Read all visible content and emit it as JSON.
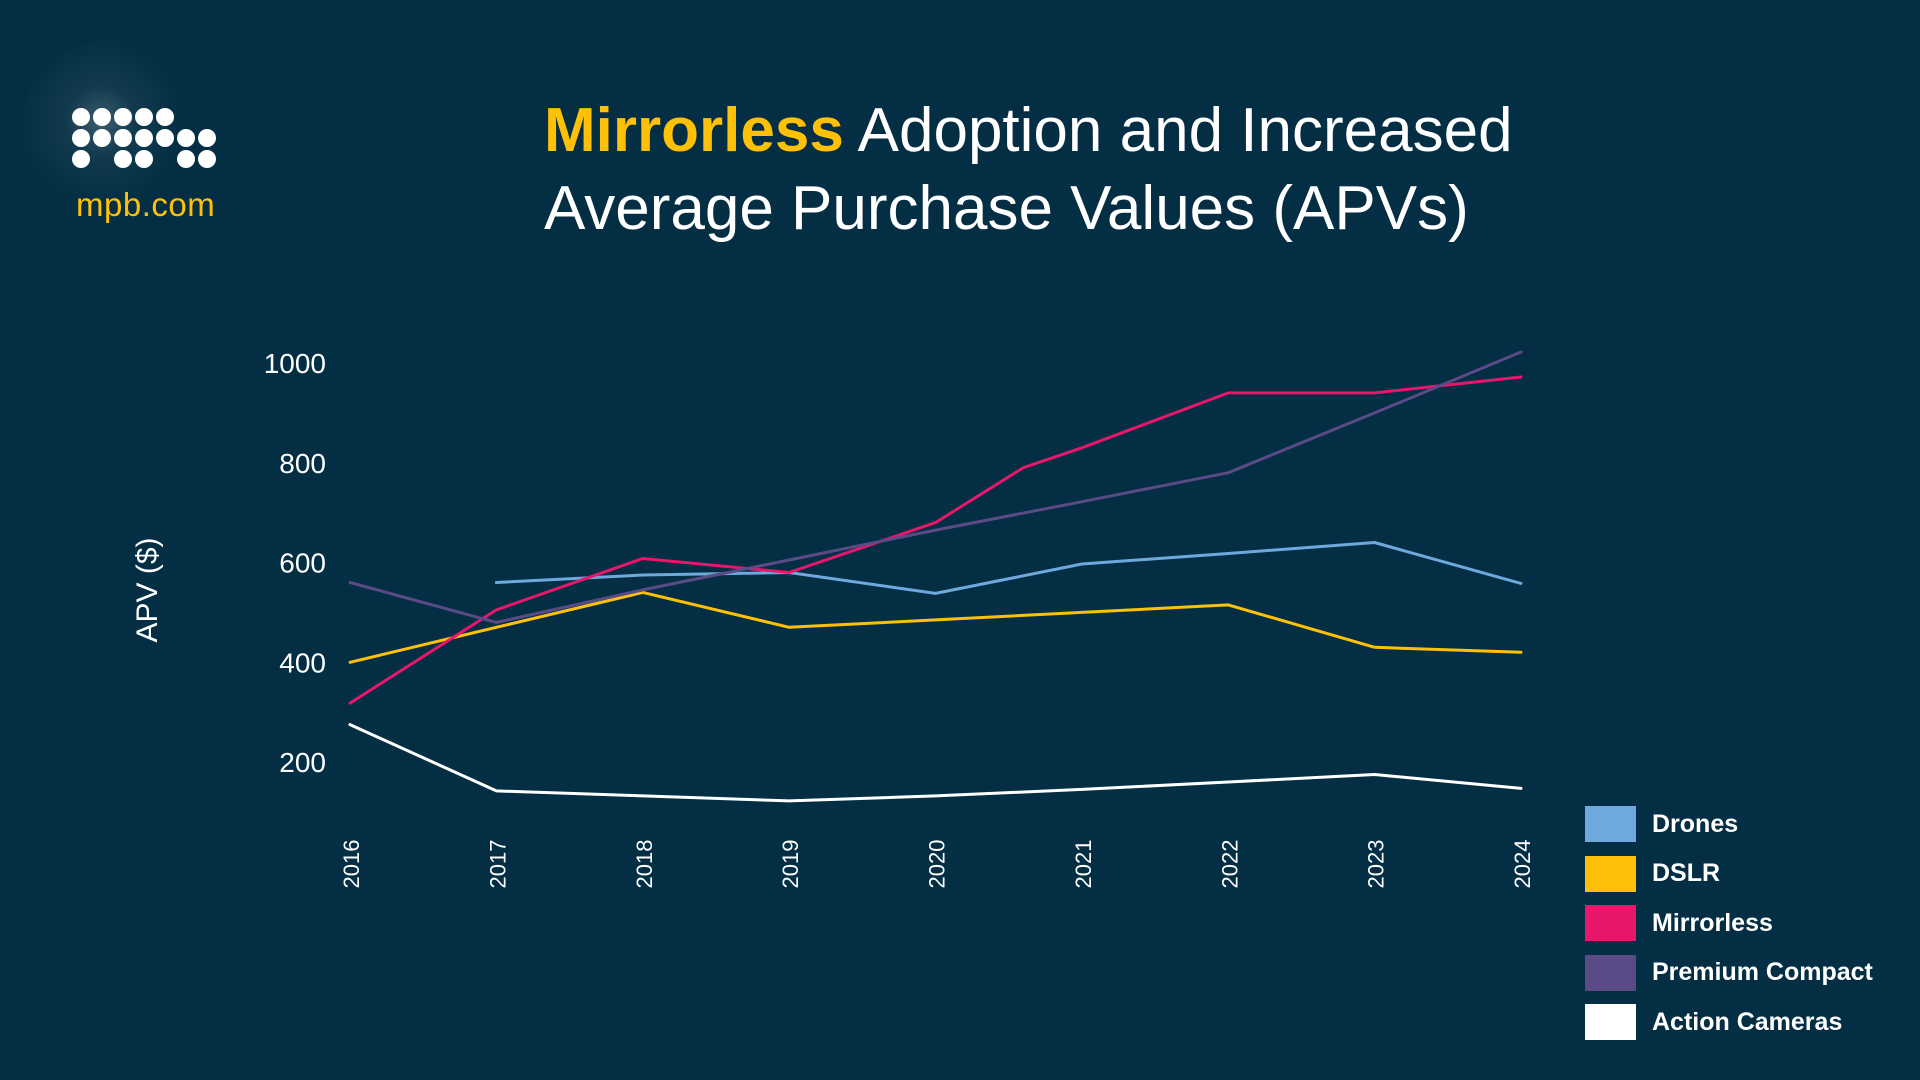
{
  "brand": {
    "site": "mpb.com",
    "logo_icon": "mpb-dot-logo",
    "accent_color": "#FFC107",
    "background_color": "#032E43"
  },
  "title": {
    "highlight": "Mirrorless",
    "line1_rest": "Adoption and Increased",
    "line2": "Average Purchase Values (APVs)"
  },
  "chart_data": {
    "type": "line",
    "title": "Mirrorless Adoption and Increased Average Purchase Values (APVs)",
    "xlabel": "",
    "ylabel": "APV ($)",
    "x": [
      "2016",
      "2017",
      "2018",
      "2019",
      "2020",
      "2021",
      "2022",
      "2023",
      "2024"
    ],
    "xlim": [
      2016,
      2024
    ],
    "ylim": [
      0,
      1050
    ],
    "yticks": [
      200,
      400,
      600,
      800,
      1000
    ],
    "grid": false,
    "legend_position": "bottom-right",
    "series": [
      {
        "name": "Drones",
        "color": "#6FA8DC",
        "points": [
          [
            2017,
            560
          ],
          [
            2018,
            575
          ],
          [
            2019,
            580
          ],
          [
            2020,
            538
          ],
          [
            2021,
            597
          ],
          [
            2022,
            618
          ],
          [
            2023,
            640
          ],
          [
            2024,
            558
          ]
        ]
      },
      {
        "name": "DSLR",
        "color": "#FFC107",
        "points": [
          [
            2016,
            400
          ],
          [
            2017,
            470
          ],
          [
            2018,
            540
          ],
          [
            2019,
            470
          ],
          [
            2020,
            485
          ],
          [
            2021,
            500
          ],
          [
            2022,
            515
          ],
          [
            2023,
            430
          ],
          [
            2024,
            420
          ]
        ]
      },
      {
        "name": "Mirrorless",
        "color": "#E8176C",
        "points": [
          [
            2016,
            318
          ],
          [
            2017,
            505
          ],
          [
            2018,
            608
          ],
          [
            2019,
            580
          ],
          [
            2020,
            680
          ],
          [
            2020.6,
            790
          ],
          [
            2021,
            830
          ],
          [
            2022,
            940
          ],
          [
            2023,
            940
          ],
          [
            2024,
            972
          ]
        ]
      },
      {
        "name": "Premium Compact",
        "color": "#5A4A86",
        "points": [
          [
            2016,
            560
          ],
          [
            2017,
            480
          ],
          [
            2018,
            545
          ],
          [
            2019,
            605
          ],
          [
            2020,
            665
          ],
          [
            2021,
            722
          ],
          [
            2022,
            780
          ],
          [
            2023,
            900
          ],
          [
            2024,
            1022
          ]
        ]
      },
      {
        "name": "Action Cameras",
        "color": "#FFFFFF",
        "points": [
          [
            2016,
            275
          ],
          [
            2017,
            142
          ],
          [
            2018,
            132
          ],
          [
            2019,
            122
          ],
          [
            2020,
            132
          ],
          [
            2021,
            145
          ],
          [
            2022,
            160
          ],
          [
            2023,
            175
          ],
          [
            2024,
            147
          ]
        ]
      }
    ]
  }
}
